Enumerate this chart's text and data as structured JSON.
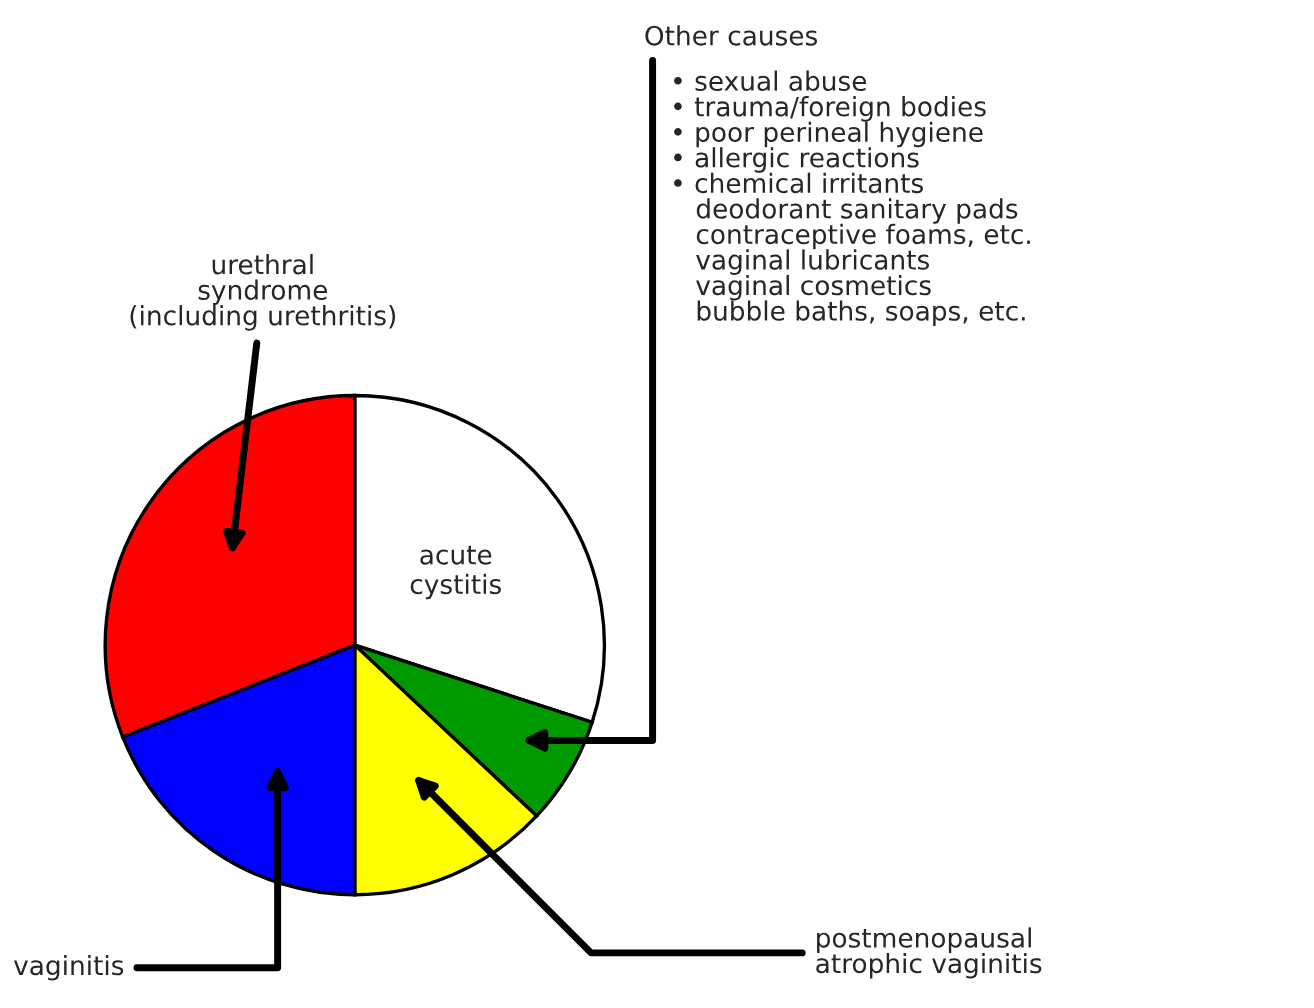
{
  "chart_data": {
    "type": "pie",
    "categories": [
      "acute cystitis",
      "Other causes",
      "postmenopausal atrophic vaginitis",
      "vaginitis",
      "urethral syndrome (including urethritis)"
    ],
    "values": [
      30,
      7,
      13,
      19,
      31
    ],
    "colors": [
      "#ffffff",
      "#009900",
      "#ffff00",
      "#0000ff",
      "#ff0000"
    ],
    "annotations": [
      "• sexual abuse",
      "• trauma/foreign bodies",
      "• poor perineal hygiene",
      "• allergic reactions",
      "• chemical irritants",
      "   deodorant sanitary pads",
      "   contraceptive foams, etc.",
      "   vaginal lubricants",
      "   vaginal cosmetics",
      "   bubble baths, soaps, etc."
    ]
  }
}
